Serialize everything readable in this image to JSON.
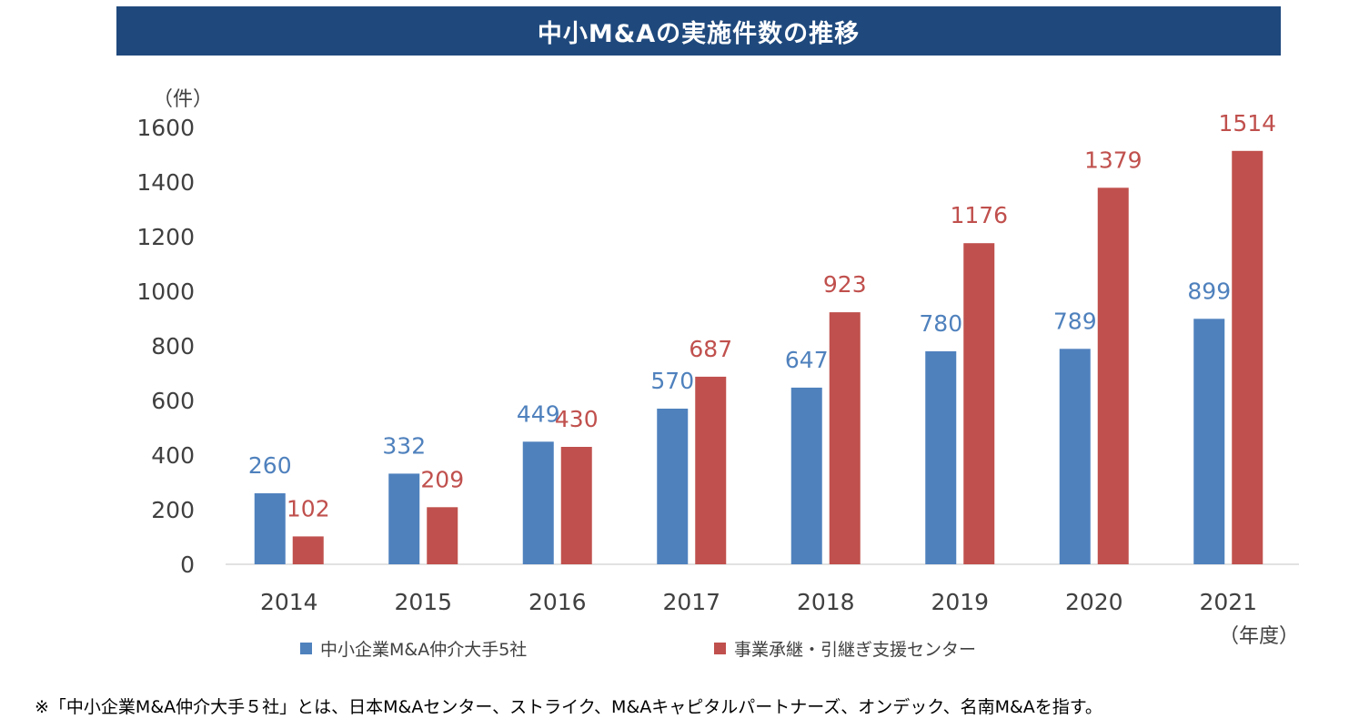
{
  "title": "中小M&Aの実施件数の推移",
  "footnote": "※「中小企業M&A仲介大手５社」とは、日本M&Aセンター、ストライク、M&Aキャピタルパートナーズ、オンデック、名南M&Aを指す。",
  "colors": {
    "series1": "#4f81bd",
    "series2": "#c0504d",
    "axis_text": "#404040",
    "title_bg": "#1f497d"
  },
  "chart_data": {
    "type": "bar",
    "title": "中小M&Aの実施件数の推移",
    "ylabel": "（件）",
    "xlabel": "（年度）",
    "ylim": [
      0,
      1600
    ],
    "yticks": [
      0,
      200,
      400,
      600,
      800,
      1000,
      1200,
      1400,
      1600
    ],
    "categories": [
      "2014",
      "2015",
      "2016",
      "2017",
      "2018",
      "2019",
      "2020",
      "2021"
    ],
    "series": [
      {
        "name": "中小企業M&A仲介大手5社",
        "values": [
          260,
          332,
          449,
          570,
          647,
          780,
          789,
          899
        ]
      },
      {
        "name": "事業承継・引継ぎ支援センター",
        "values": [
          102,
          209,
          430,
          687,
          923,
          1176,
          1379,
          1514
        ]
      }
    ],
    "grid": false,
    "legend": "bottom"
  }
}
